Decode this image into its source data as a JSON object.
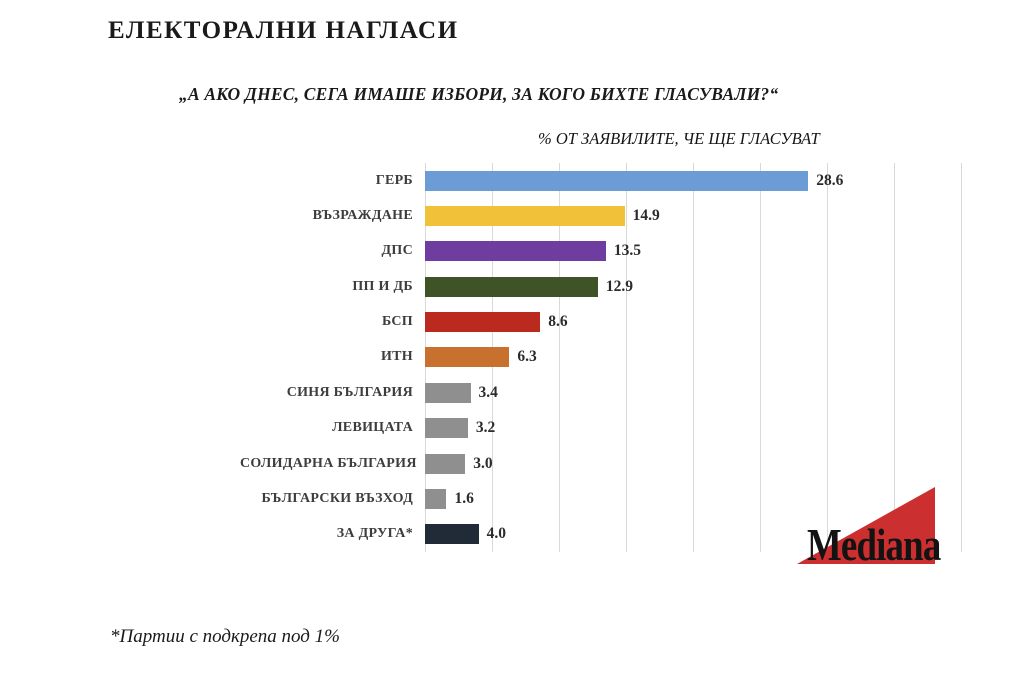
{
  "header": {
    "title": "ЕЛЕКТОРАЛНИ НАГЛАСИ",
    "question": "„А АКО ДНЕС, СЕГА ИМАШЕ ИЗБОРИ, ЗА КОГО БИХТЕ ГЛАСУВАЛИ?“",
    "subtitle": "% ОТ ЗАЯВИЛИТЕ, ЧЕ ЩЕ ГЛАСУВАТ"
  },
  "footer": {
    "footnote": "*Партии с подкрепа под 1%"
  },
  "logo": {
    "text": "Mediana",
    "triangle_color": "#cb2f2f",
    "text_color": "#131313"
  },
  "chart_data": {
    "type": "bar",
    "orientation": "horizontal",
    "title": "„А АКО ДНЕС, СЕГА ИМАШЕ ИЗБОРИ, ЗА КОГО БИХТЕ ГЛАСУВАЛИ?“",
    "subtitle": "% ОТ ЗАЯВИЛИТЕ, ЧЕ ЩЕ ГЛАСУВАТ",
    "unit": "%",
    "categories": [
      "ГЕРБ",
      "ВЪЗРАЖДАНЕ",
      "ДПС",
      "ПП И ДБ",
      "БСП",
      "ИТН",
      "СИНЯ БЪЛГАРИЯ",
      "ЛЕВИЦАТА",
      "СОЛИДАРНА БЪЛГАРИЯ",
      "БЪЛГАРСКИ ВЪЗХОД",
      "ЗА ДРУГА*"
    ],
    "values": [
      28.6,
      14.9,
      13.5,
      12.9,
      8.6,
      6.3,
      3.4,
      3.2,
      3.0,
      1.6,
      4.0
    ],
    "value_labels": [
      "28.6",
      "14.9",
      "13.5",
      "12.9",
      "8.6",
      "6.3",
      "3.4",
      "3.2",
      "3.0",
      "1.6",
      "4.0"
    ],
    "colors": [
      "#6b9cd6",
      "#f1c13a",
      "#6f3da0",
      "#3f5426",
      "#bb2a1e",
      "#c8712f",
      "#8f8f8f",
      "#8f8f8f",
      "#8f8f8f",
      "#8f8f8f",
      "#212b38"
    ],
    "xlim": [
      0,
      40
    ],
    "gridline_step": 5,
    "grid": true,
    "legend": false,
    "gridline_color": "#d9d9d9"
  }
}
